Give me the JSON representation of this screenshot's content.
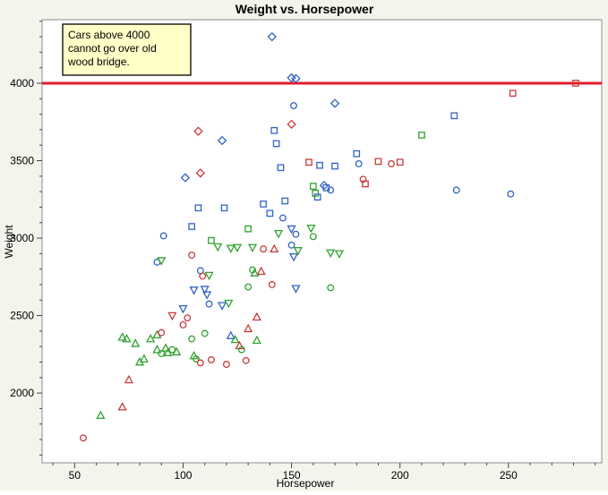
{
  "window": {
    "background": "#f4f3ec"
  },
  "chart_data": {
    "type": "scatter",
    "title": "Weight vs. Horsepower",
    "xlabel": "Horsepower",
    "ylabel": "Weight",
    "xlim": [
      35,
      293
    ],
    "ylim": [
      1550,
      4410
    ],
    "x_ticks": [
      50,
      100,
      150,
      200,
      250
    ],
    "y_ticks": [
      2000,
      2500,
      3000,
      3500,
      4000
    ],
    "x_minor_step": 10,
    "y_minor_step": 100,
    "grid": false,
    "legend": "none",
    "annotation": {
      "lines": [
        "Cars above 4000",
        "cannot go over old",
        "wood bridge."
      ],
      "fill": "#FFFFC8",
      "border": "#000000"
    },
    "reference_line": {
      "y": 4000,
      "color": "#E01B2C",
      "stroke_width": 3
    },
    "marker_colors": {
      "red": "#C93A3A",
      "green": "#2FA12F",
      "blue": "#3163C5"
    },
    "plot_frame_color": "#8c8c8c",
    "plot_background": "#ffffff",
    "points": [
      {
        "x": 54,
        "y": 1710,
        "c": "red",
        "s": "circle"
      },
      {
        "x": 62,
        "y": 1855,
        "c": "green",
        "s": "tri-up"
      },
      {
        "x": 72,
        "y": 1910,
        "c": "red",
        "s": "tri-up"
      },
      {
        "x": 75,
        "y": 2085,
        "c": "red",
        "s": "tri-up"
      },
      {
        "x": 72,
        "y": 2360,
        "c": "green",
        "s": "tri-up"
      },
      {
        "x": 74,
        "y": 2350,
        "c": "green",
        "s": "tri-up"
      },
      {
        "x": 78,
        "y": 2320,
        "c": "green",
        "s": "tri-up"
      },
      {
        "x": 80,
        "y": 2200,
        "c": "green",
        "s": "tri-up"
      },
      {
        "x": 82,
        "y": 2220,
        "c": "green",
        "s": "tri-up"
      },
      {
        "x": 85,
        "y": 2350,
        "c": "green",
        "s": "tri-up"
      },
      {
        "x": 88,
        "y": 2375,
        "c": "green",
        "s": "tri-up"
      },
      {
        "x": 88,
        "y": 2280,
        "c": "green",
        "s": "tri-up"
      },
      {
        "x": 90,
        "y": 2255,
        "c": "green",
        "s": "circle"
      },
      {
        "x": 90,
        "y": 2390,
        "c": "red",
        "s": "circle"
      },
      {
        "x": 92,
        "y": 2290,
        "c": "green",
        "s": "tri-up"
      },
      {
        "x": 93,
        "y": 2260,
        "c": "green",
        "s": "tri-up"
      },
      {
        "x": 95,
        "y": 2280,
        "c": "green",
        "s": "circle"
      },
      {
        "x": 97,
        "y": 2265,
        "c": "green",
        "s": "tri-up"
      },
      {
        "x": 100,
        "y": 2440,
        "c": "red",
        "s": "circle"
      },
      {
        "x": 102,
        "y": 2485,
        "c": "red",
        "s": "circle"
      },
      {
        "x": 104,
        "y": 2350,
        "c": "green",
        "s": "circle"
      },
      {
        "x": 105,
        "y": 2240,
        "c": "green",
        "s": "tri-up"
      },
      {
        "x": 106,
        "y": 2220,
        "c": "green",
        "s": "circle"
      },
      {
        "x": 108,
        "y": 2195,
        "c": "red",
        "s": "circle"
      },
      {
        "x": 113,
        "y": 2215,
        "c": "red",
        "s": "circle"
      },
      {
        "x": 110,
        "y": 2385,
        "c": "green",
        "s": "circle"
      },
      {
        "x": 122,
        "y": 2370,
        "c": "blue",
        "s": "tri-up"
      },
      {
        "x": 124,
        "y": 2345,
        "c": "green",
        "s": "tri-up"
      },
      {
        "x": 126,
        "y": 2305,
        "c": "red",
        "s": "tri-up"
      },
      {
        "x": 127,
        "y": 2280,
        "c": "green",
        "s": "circle"
      },
      {
        "x": 130,
        "y": 2415,
        "c": "red",
        "s": "tri-up"
      },
      {
        "x": 134,
        "y": 2490,
        "c": "red",
        "s": "tri-up"
      },
      {
        "x": 134,
        "y": 2340,
        "c": "green",
        "s": "tri-up"
      },
      {
        "x": 120,
        "y": 2185,
        "c": "red",
        "s": "circle"
      },
      {
        "x": 129,
        "y": 2210,
        "c": "red",
        "s": "circle"
      },
      {
        "x": 88,
        "y": 2845,
        "c": "blue",
        "s": "circle"
      },
      {
        "x": 90,
        "y": 2855,
        "c": "green",
        "s": "tri-down"
      },
      {
        "x": 91,
        "y": 3015,
        "c": "blue",
        "s": "circle"
      },
      {
        "x": 95,
        "y": 2500,
        "c": "red",
        "s": "tri-down"
      },
      {
        "x": 100,
        "y": 2545,
        "c": "blue",
        "s": "tri-down"
      },
      {
        "x": 101,
        "y": 3390,
        "c": "blue",
        "s": "diamond"
      },
      {
        "x": 104,
        "y": 3075,
        "c": "blue",
        "s": "square"
      },
      {
        "x": 107,
        "y": 3195,
        "c": "blue",
        "s": "square"
      },
      {
        "x": 104,
        "y": 2890,
        "c": "red",
        "s": "circle"
      },
      {
        "x": 105,
        "y": 2665,
        "c": "blue",
        "s": "tri-down"
      },
      {
        "x": 108,
        "y": 2790,
        "c": "blue",
        "s": "circle"
      },
      {
        "x": 109,
        "y": 2755,
        "c": "red",
        "s": "circle"
      },
      {
        "x": 112,
        "y": 2760,
        "c": "green",
        "s": "tri-down"
      },
      {
        "x": 110,
        "y": 2670,
        "c": "blue",
        "s": "tri-down"
      },
      {
        "x": 111,
        "y": 2635,
        "c": "blue",
        "s": "tri-down"
      },
      {
        "x": 112,
        "y": 2575,
        "c": "blue",
        "s": "circle"
      },
      {
        "x": 118,
        "y": 2565,
        "c": "blue",
        "s": "tri-down"
      },
      {
        "x": 107,
        "y": 3690,
        "c": "red",
        "s": "diamond"
      },
      {
        "x": 108,
        "y": 3420,
        "c": "red",
        "s": "diamond"
      },
      {
        "x": 113,
        "y": 2985,
        "c": "green",
        "s": "square"
      },
      {
        "x": 116,
        "y": 2945,
        "c": "green",
        "s": "tri-down"
      },
      {
        "x": 119,
        "y": 3195,
        "c": "blue",
        "s": "square"
      },
      {
        "x": 118,
        "y": 3630,
        "c": "blue",
        "s": "diamond"
      },
      {
        "x": 122,
        "y": 2935,
        "c": "green",
        "s": "tri-down"
      },
      {
        "x": 121,
        "y": 2580,
        "c": "green",
        "s": "tri-down"
      },
      {
        "x": 125,
        "y": 2940,
        "c": "green",
        "s": "tri-down"
      },
      {
        "x": 130,
        "y": 2685,
        "c": "green",
        "s": "circle"
      },
      {
        "x": 130,
        "y": 3060,
        "c": "green",
        "s": "square"
      },
      {
        "x": 132,
        "y": 2940,
        "c": "green",
        "s": "tri-down"
      },
      {
        "x": 132,
        "y": 2795,
        "c": "green",
        "s": "circle"
      },
      {
        "x": 133,
        "y": 2775,
        "c": "green",
        "s": "tri-up"
      },
      {
        "x": 136,
        "y": 2785,
        "c": "red",
        "s": "tri-up"
      },
      {
        "x": 137,
        "y": 2930,
        "c": "red",
        "s": "circle"
      },
      {
        "x": 137,
        "y": 3220,
        "c": "blue",
        "s": "square"
      },
      {
        "x": 140,
        "y": 3160,
        "c": "blue",
        "s": "square"
      },
      {
        "x": 142,
        "y": 3695,
        "c": "blue",
        "s": "square"
      },
      {
        "x": 143,
        "y": 3610,
        "c": "blue",
        "s": "square"
      },
      {
        "x": 141,
        "y": 4300,
        "c": "blue",
        "s": "diamond"
      },
      {
        "x": 141,
        "y": 2700,
        "c": "red",
        "s": "circle"
      },
      {
        "x": 142,
        "y": 2930,
        "c": "red",
        "s": "tri-up"
      },
      {
        "x": 144,
        "y": 3030,
        "c": "green",
        "s": "tri-down"
      },
      {
        "x": 145,
        "y": 3455,
        "c": "blue",
        "s": "square"
      },
      {
        "x": 146,
        "y": 3130,
        "c": "blue",
        "s": "circle"
      },
      {
        "x": 147,
        "y": 3240,
        "c": "blue",
        "s": "square"
      },
      {
        "x": 150,
        "y": 4035,
        "c": "blue",
        "s": "diamond"
      },
      {
        "x": 152,
        "y": 4030,
        "c": "blue",
        "s": "diamond"
      },
      {
        "x": 151,
        "y": 3855,
        "c": "blue",
        "s": "circle"
      },
      {
        "x": 150,
        "y": 3735,
        "c": "red",
        "s": "diamond"
      },
      {
        "x": 150,
        "y": 3060,
        "c": "blue",
        "s": "tri-down"
      },
      {
        "x": 150,
        "y": 2955,
        "c": "blue",
        "s": "circle"
      },
      {
        "x": 152,
        "y": 3025,
        "c": "blue",
        "s": "circle"
      },
      {
        "x": 151,
        "y": 2880,
        "c": "blue",
        "s": "tri-down"
      },
      {
        "x": 153,
        "y": 2920,
        "c": "green",
        "s": "tri-down"
      },
      {
        "x": 152,
        "y": 2675,
        "c": "blue",
        "s": "tri-down"
      },
      {
        "x": 158,
        "y": 3490,
        "c": "red",
        "s": "square"
      },
      {
        "x": 159,
        "y": 3065,
        "c": "green",
        "s": "tri-down"
      },
      {
        "x": 160,
        "y": 3010,
        "c": "green",
        "s": "circle"
      },
      {
        "x": 160,
        "y": 3335,
        "c": "green",
        "s": "square"
      },
      {
        "x": 161,
        "y": 3290,
        "c": "green",
        "s": "square"
      },
      {
        "x": 162,
        "y": 3265,
        "c": "blue",
        "s": "square"
      },
      {
        "x": 163,
        "y": 3470,
        "c": "blue",
        "s": "square"
      },
      {
        "x": 165,
        "y": 3340,
        "c": "blue",
        "s": "diamond"
      },
      {
        "x": 166,
        "y": 3325,
        "c": "blue",
        "s": "square"
      },
      {
        "x": 168,
        "y": 3310,
        "c": "blue",
        "s": "circle"
      },
      {
        "x": 168,
        "y": 2905,
        "c": "green",
        "s": "tri-down"
      },
      {
        "x": 168,
        "y": 2680,
        "c": "green",
        "s": "circle"
      },
      {
        "x": 170,
        "y": 3465,
        "c": "blue",
        "s": "square"
      },
      {
        "x": 170,
        "y": 3870,
        "c": "blue",
        "s": "diamond"
      },
      {
        "x": 172,
        "y": 2900,
        "c": "green",
        "s": "tri-down"
      },
      {
        "x": 180,
        "y": 3545,
        "c": "blue",
        "s": "square"
      },
      {
        "x": 181,
        "y": 3480,
        "c": "blue",
        "s": "circle"
      },
      {
        "x": 183,
        "y": 3380,
        "c": "red",
        "s": "circle"
      },
      {
        "x": 184,
        "y": 3350,
        "c": "red",
        "s": "square"
      },
      {
        "x": 190,
        "y": 3495,
        "c": "red",
        "s": "square"
      },
      {
        "x": 196,
        "y": 3480,
        "c": "red",
        "s": "circle"
      },
      {
        "x": 200,
        "y": 3490,
        "c": "red",
        "s": "square"
      },
      {
        "x": 210,
        "y": 3665,
        "c": "green",
        "s": "square"
      },
      {
        "x": 225,
        "y": 3790,
        "c": "blue",
        "s": "square"
      },
      {
        "x": 226,
        "y": 3310,
        "c": "blue",
        "s": "circle"
      },
      {
        "x": 251,
        "y": 3285,
        "c": "blue",
        "s": "circle"
      },
      {
        "x": 252,
        "y": 3935,
        "c": "red",
        "s": "square"
      },
      {
        "x": 281,
        "y": 4000,
        "c": "red",
        "s": "square"
      }
    ]
  }
}
